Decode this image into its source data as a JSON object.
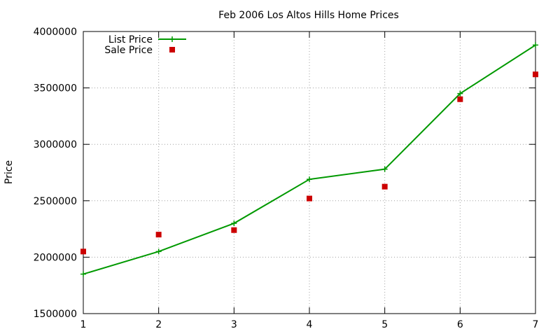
{
  "chart_data": {
    "type": "line",
    "title": "Feb 2006 Los Altos Hills Home Prices",
    "xlabel": "",
    "ylabel": "Price",
    "xlim": [
      1,
      7
    ],
    "ylim": [
      1500000,
      4000000
    ],
    "x_ticks": [
      1,
      2,
      3,
      4,
      5,
      6,
      7
    ],
    "y_ticks": [
      1500000,
      2000000,
      2500000,
      3000000,
      3500000,
      4000000
    ],
    "grid": true,
    "legend_position": "top-left",
    "series": [
      {
        "name": "List Price",
        "style": "line-with-plus-markers",
        "color": "#009900",
        "x": [
          1,
          2,
          3,
          4,
          5,
          6,
          7
        ],
        "values": [
          1850000,
          2050000,
          2300000,
          2690000,
          2780000,
          3450000,
          3880000
        ]
      },
      {
        "name": "Sale Price",
        "style": "square-markers",
        "color": "#cc0000",
        "x": [
          1,
          2,
          3,
          4,
          5,
          6,
          7
        ],
        "values": [
          2050000,
          2200000,
          2240000,
          2520000,
          2625000,
          3400000,
          3620000
        ]
      }
    ]
  }
}
